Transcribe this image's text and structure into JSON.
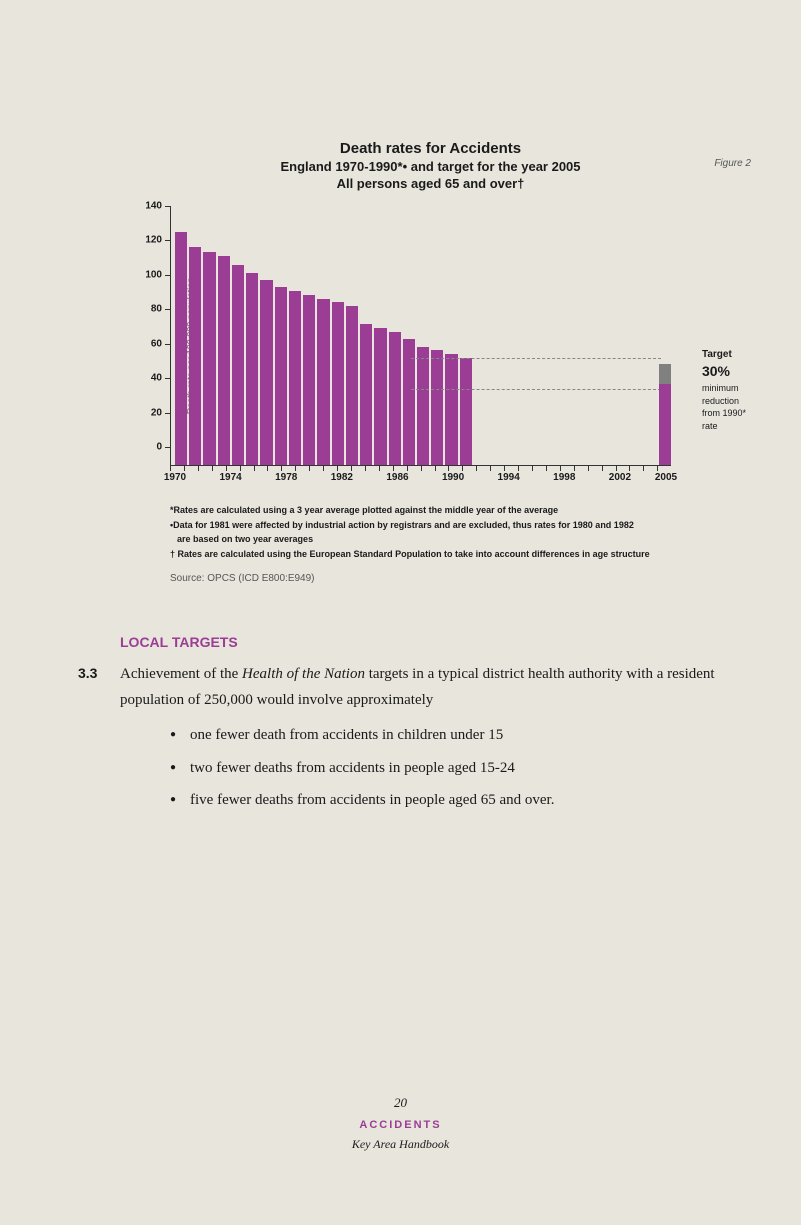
{
  "chart": {
    "title": "Death rates for Accidents",
    "subtitle1": "England 1970-1990*• and target for the year 2005",
    "subtitle2": "All persons aged 65 and over†",
    "figure_label": "Figure 2",
    "y_axis_label": "Death rate per 100,000 population",
    "y_ticks": [
      "0",
      "20",
      "40",
      "60",
      "80",
      "100",
      "120",
      "140"
    ],
    "ylim": [
      0,
      140
    ],
    "x_labels": [
      "1970",
      "1974",
      "1978",
      "1982",
      "1986",
      "1990",
      "1994",
      "1998",
      "2002",
      "2005"
    ],
    "x_label_positions_pct": [
      1,
      12.1,
      23.2,
      34.3,
      45.4,
      56.5,
      67.6,
      78.7,
      89.8,
      99
    ],
    "bar_values": [
      126,
      118,
      115,
      113,
      108,
      104,
      100,
      96,
      94,
      92,
      90,
      88,
      86,
      76,
      74,
      72,
      68,
      64,
      62,
      60,
      58
    ],
    "bar_color": "#9b3d94",
    "target_bar_height_pct": 39,
    "target_top_color": "#808080",
    "target_bottom_color": "#9b3d94",
    "dashed_upper_pct": 41,
    "dashed_lower_pct": 29,
    "target_annotation": {
      "line1": "Target",
      "line2": "30%",
      "line3": "minimum",
      "line4": "reduction",
      "line5": "from 1990*",
      "line6": "rate"
    },
    "footnotes": {
      "f1": "*Rates are calculated using a 3 year average plotted against the middle year of the average",
      "f2": "•Data for 1981 were affected by industrial action by registrars and are excluded, thus rates for 1980 and 1982",
      "f2b": "are based on two year averages",
      "f3": "† Rates are calculated using the European Standard Population to take into account differences in age structure"
    },
    "source": "Source: OPCS (ICD E800:E949)",
    "background_color": "#e8e5dd"
  },
  "section": {
    "heading": "LOCAL TARGETS",
    "para_num": "3.3",
    "para_a": "Achievement of the ",
    "para_italic": "Health of the Nation",
    "para_b": " targets in a typical district health authority with a resident population of 250,000 would involve approximately",
    "bullets": [
      "one fewer death from accidents in children under 15",
      "two fewer deaths from accidents in people aged 15-24",
      "five fewer deaths from accidents in people aged 65 and over."
    ]
  },
  "footer": {
    "page": "20",
    "category": "ACCIDENTS",
    "book": "Key Area Handbook"
  }
}
